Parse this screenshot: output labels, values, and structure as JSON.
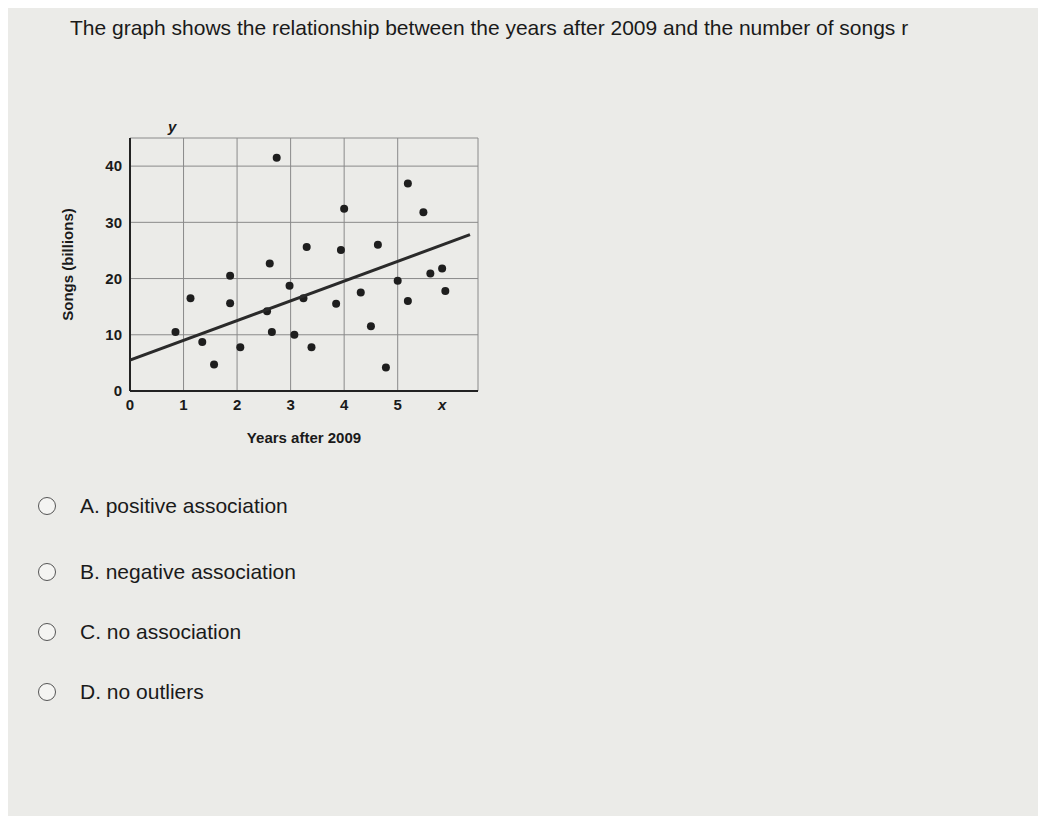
{
  "question": "The graph shows the relationship between the years after 2009 and the number of songs r",
  "options": [
    "A. positive association",
    "B. negative association",
    "C. no association",
    "D. no outliers"
  ],
  "chart_data": {
    "type": "scatter",
    "x_label": "Years after 2009",
    "y_label": "Songs (billions)",
    "x_symbol": "x",
    "y_symbol": "y",
    "xlim": [
      0,
      6.5
    ],
    "ylim": [
      0,
      45
    ],
    "xticks": [
      0,
      1,
      2,
      3,
      4,
      5
    ],
    "yticks": [
      0,
      10,
      20,
      30,
      40
    ],
    "grid": true,
    "series": [
      {
        "type": "scatter",
        "marker": "circle",
        "color": "#1e1e1e",
        "x": [
          2.74,
          5.19,
          4.0,
          5.48,
          3.3,
          3.94,
          4.63,
          2.61,
          1.87,
          2.98,
          1.13,
          1.87,
          3.24,
          3.85,
          4.31,
          5.0,
          5.61,
          5.83,
          5.89,
          5.19,
          2.56,
          4.5,
          0.85,
          1.35,
          2.06,
          2.65,
          3.07,
          3.39,
          1.57,
          4.78
        ],
        "values": [
          41.5,
          36.9,
          32.4,
          31.8,
          25.6,
          25.1,
          26,
          22.7,
          20.5,
          18.7,
          16.5,
          15.6,
          16.5,
          15.5,
          17.5,
          19.6,
          20.9,
          21.8,
          17.8,
          16,
          14.2,
          11.5,
          10.5,
          8.7,
          7.8,
          10.5,
          10,
          7.8,
          4.7,
          4.2
        ]
      },
      {
        "type": "line",
        "line_style": "solid",
        "color": "#2a2a2a",
        "x": [
          0,
          6.35
        ],
        "values": [
          5.5,
          27.8
        ]
      }
    ]
  }
}
